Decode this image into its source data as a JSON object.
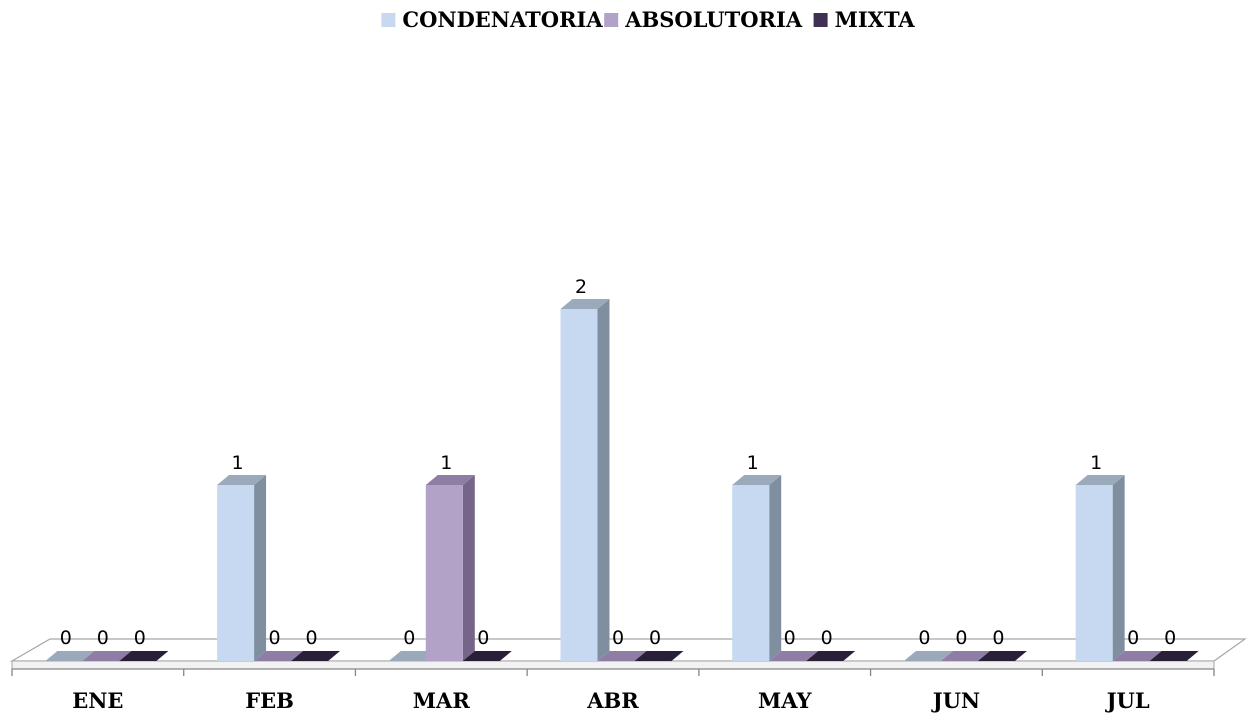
{
  "chart_data": {
    "type": "bar",
    "categories": [
      "ENE",
      "FEB",
      "MAR",
      "ABR",
      "MAY",
      "JUN",
      "JUL"
    ],
    "series": [
      {
        "name": "CONDENATORIA",
        "values": [
          0,
          1,
          0,
          2,
          1,
          0,
          1
        ]
      },
      {
        "name": "ABSOLUTORIA",
        "values": [
          0,
          0,
          1,
          0,
          0,
          0,
          0
        ]
      },
      {
        "name": "MIXTA",
        "values": [
          0,
          0,
          0,
          0,
          0,
          0,
          0
        ]
      }
    ],
    "title": "",
    "xlabel": "",
    "ylabel": "",
    "ylim": [
      0,
      2
    ],
    "grid": false,
    "legend_position": "top",
    "data_labels": true,
    "style": "3d-column",
    "colors": {
      "CONDENATORIA": {
        "front": "#c6d9f1",
        "side": "#7f8fa0",
        "top": "#9aaabb"
      },
      "ABSOLUTORIA": {
        "front": "#b2a2c7",
        "side": "#746589",
        "top": "#8e7ea6"
      },
      "MIXTA": {
        "front": "#403152",
        "side": "#241a30",
        "top": "#2a1f38"
      },
      "floor_edge": "#a6a6a6",
      "axis": "#868686"
    }
  }
}
